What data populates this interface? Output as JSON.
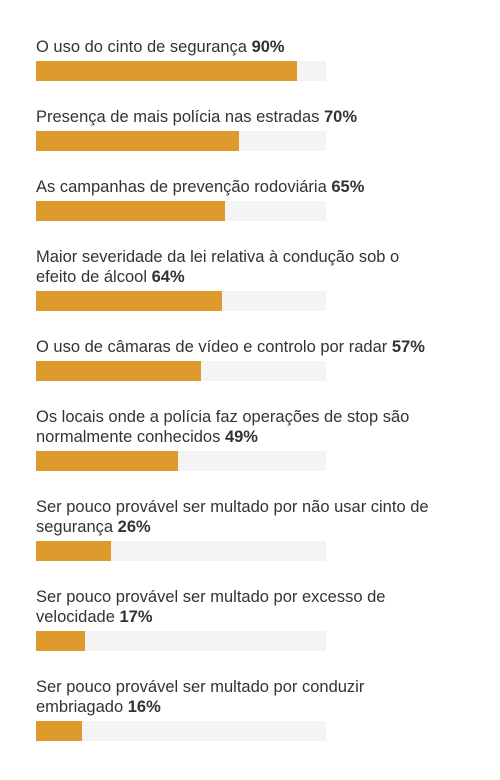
{
  "chart_data": {
    "type": "bar",
    "orientation": "horizontal",
    "categories": [
      "O uso do cinto de segurança",
      "Presença de mais polícia nas estradas",
      "As campanhas de prevenção rodoviária",
      "Maior severidade da lei relativa à condução sob o efeito de álcool",
      "O uso de câmaras de vídeo e controlo por radar",
      "Os locais onde a polícia faz operações de stop são normalmente conhecidos",
      "Ser pouco provável ser multado por não usar cinto de segurança",
      "Ser pouco provável ser multado por excesso de velocidade",
      "Ser pouco provável ser multado por conduzir embriagado"
    ],
    "values": [
      90,
      70,
      65,
      64,
      57,
      49,
      26,
      17,
      16
    ],
    "value_labels": [
      "90%",
      "70%",
      "65%",
      "64%",
      "57%",
      "49%",
      "26%",
      "17%",
      "16%"
    ],
    "color": "#df9a2e",
    "xlim": [
      0,
      100
    ]
  }
}
